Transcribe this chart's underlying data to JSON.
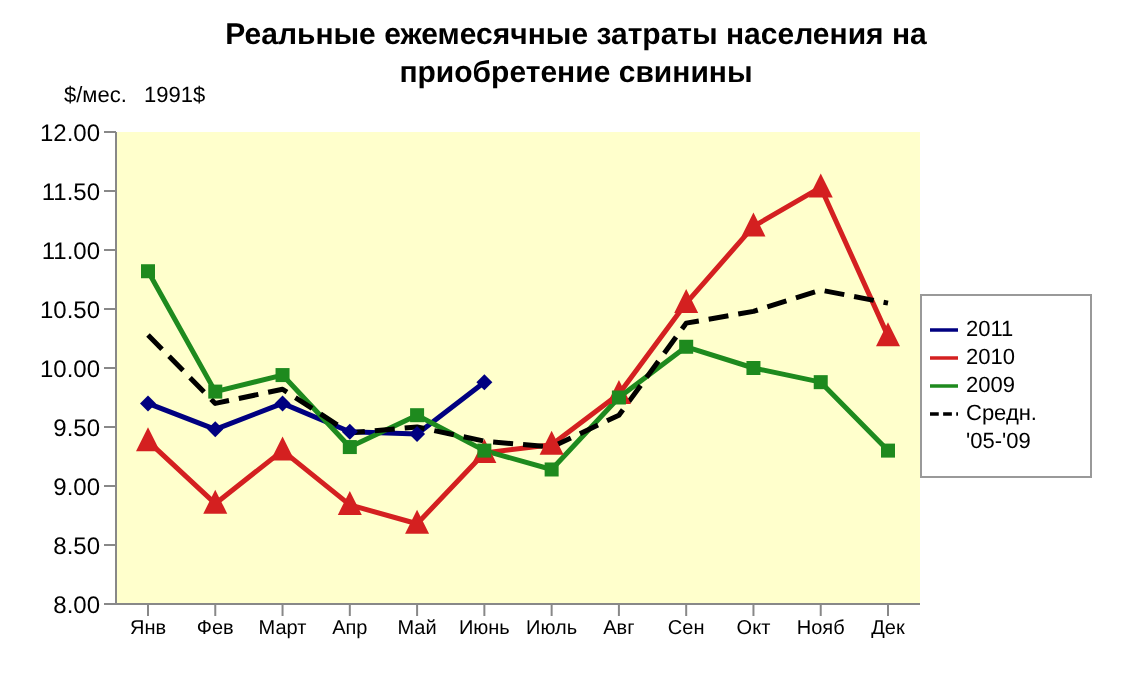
{
  "chart_data": {
    "type": "line",
    "title": "Реальные ежемесячные затраты населения на приобретение свинины",
    "ylabel": "$/мес.",
    "annotations": [
      "1991$"
    ],
    "categories": [
      "Янв",
      "Фев",
      "Март",
      "Апр",
      "Май",
      "Июнь",
      "Июль",
      "Авг",
      "Сен",
      "Окт",
      "Нояб",
      "Дек"
    ],
    "ylim": [
      8,
      12
    ],
    "yticks": [
      {
        "value": 8,
        "label": "8.00"
      },
      {
        "value": 8.5,
        "label": "8.50"
      },
      {
        "value": 9,
        "label": "9.00"
      },
      {
        "value": 9.5,
        "label": "9.50"
      },
      {
        "value": 10,
        "label": "10.00"
      },
      {
        "value": 10.5,
        "label": "10.50"
      },
      {
        "value": 11,
        "label": "11.00"
      },
      {
        "value": 11.5,
        "label": "11.50"
      },
      {
        "value": 12,
        "label": "12.00"
      }
    ],
    "legend": "right",
    "series": [
      {
        "name": "2011",
        "color": "#000080",
        "marker": "diamond",
        "values": [
          9.7,
          9.48,
          9.7,
          9.46,
          9.44,
          9.88,
          null,
          null,
          null,
          null,
          null,
          null
        ]
      },
      {
        "name": "2010",
        "color": "#d42020",
        "marker": "triangle",
        "values": [
          9.38,
          8.85,
          9.3,
          8.84,
          8.68,
          9.28,
          9.35,
          9.78,
          10.55,
          11.2,
          11.53,
          10.27
        ]
      },
      {
        "name": "2009",
        "color": "#1e8a1e",
        "marker": "square",
        "values": [
          10.82,
          9.8,
          9.94,
          9.33,
          9.6,
          9.3,
          9.14,
          9.75,
          10.18,
          10.0,
          9.88,
          9.3
        ]
      },
      {
        "name": "Средн. '05-'09",
        "color": "#000000",
        "marker": "none",
        "line_style": "dashed",
        "values": [
          10.28,
          9.7,
          9.82,
          9.45,
          9.5,
          9.38,
          9.33,
          9.6,
          10.38,
          10.48,
          10.66,
          10.55
        ]
      }
    ]
  }
}
